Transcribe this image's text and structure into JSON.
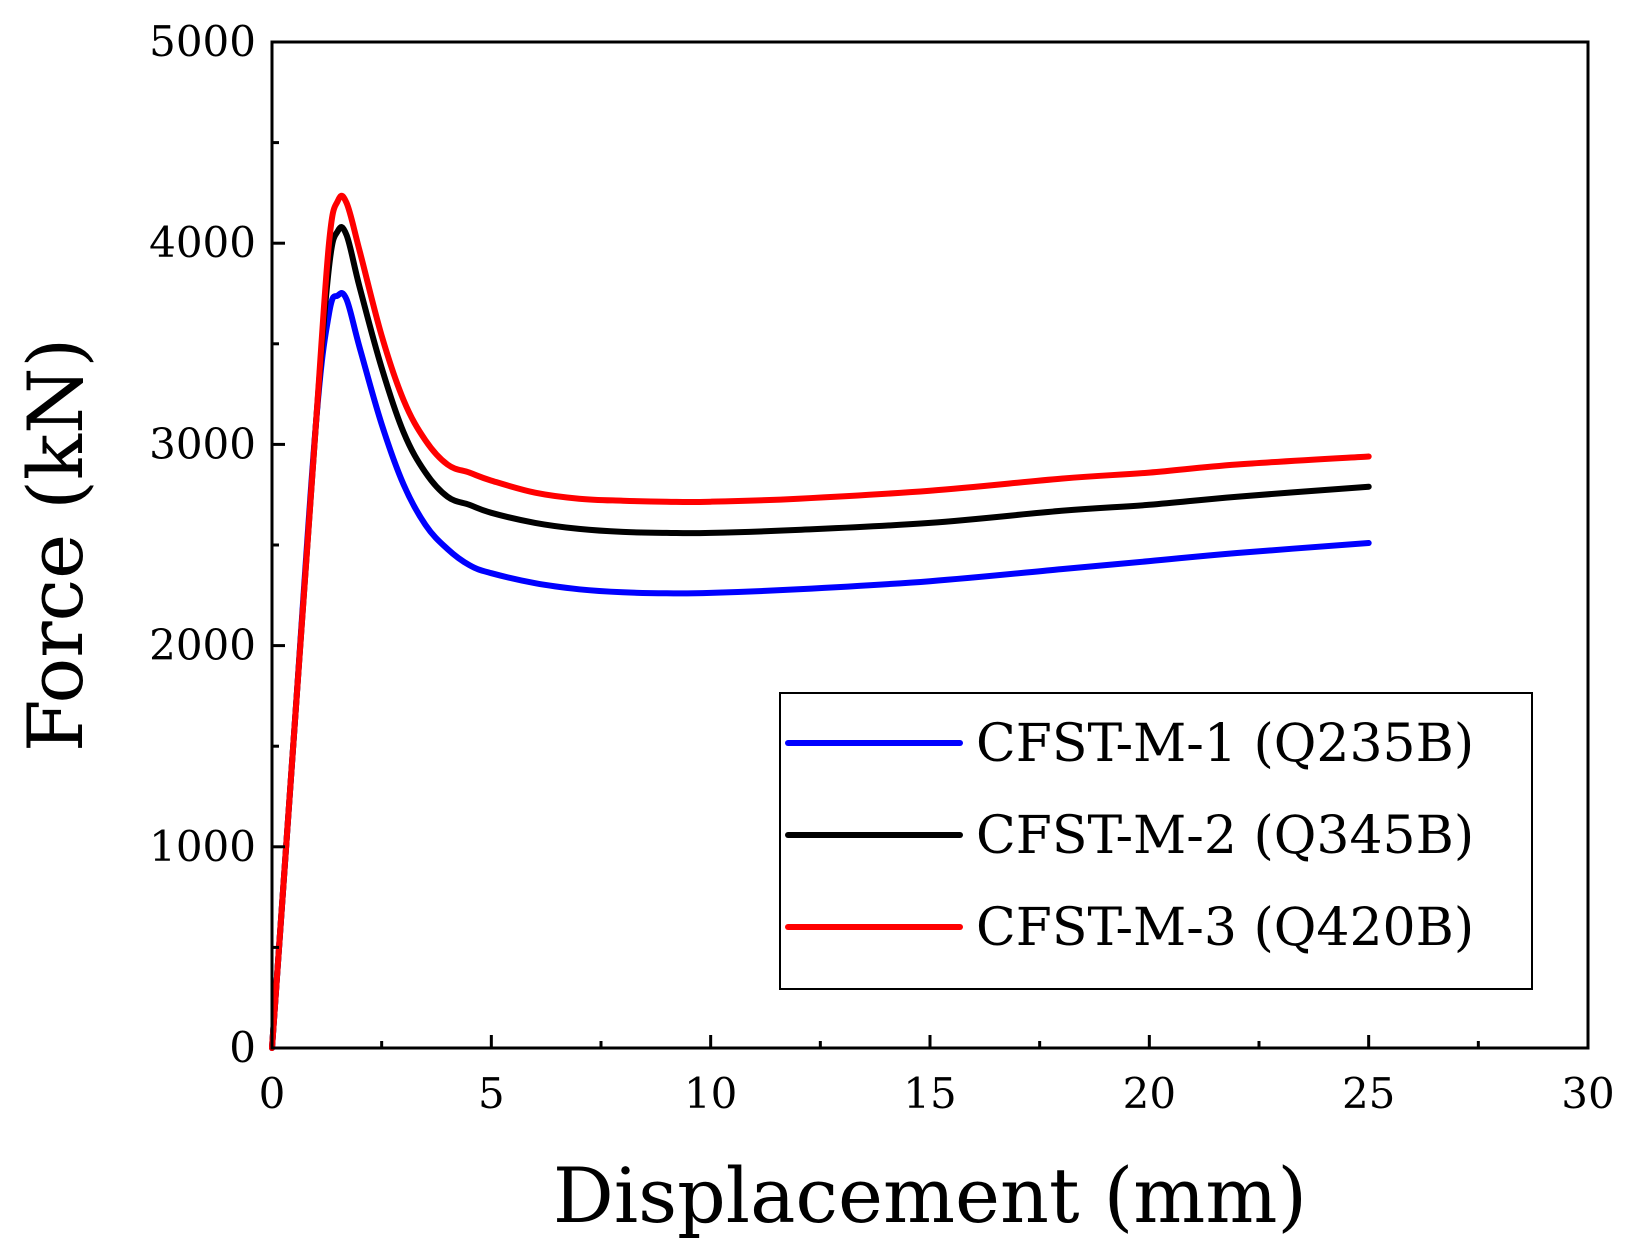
{
  "chart_data": {
    "type": "line",
    "title": "",
    "xlabel": "Displacement (mm)",
    "ylabel": "Force (kN)",
    "xlim": [
      0,
      30
    ],
    "ylim": [
      0,
      5000
    ],
    "xticks": [
      0,
      5,
      10,
      15,
      20,
      25,
      30
    ],
    "yticks": [
      0,
      1000,
      2000,
      3000,
      4000,
      5000
    ],
    "xtick_labels": [
      "0",
      "5",
      "10",
      "15",
      "20",
      "25",
      "30"
    ],
    "ytick_labels": [
      "0",
      "1000",
      "2000",
      "3000",
      "4000",
      "5000"
    ],
    "grid": false,
    "legend_position": "bottom-right",
    "series": [
      {
        "name": "CFST-M-1 (Q235B)",
        "color": "#0000ff",
        "x": [
          0,
          0.5,
          1.0,
          1.3,
          1.5,
          1.7,
          2.0,
          2.5,
          3.0,
          3.5,
          4.0,
          4.5,
          5.0,
          6.0,
          7.0,
          8.0,
          9.0,
          10.0,
          12.0,
          15.0,
          18.0,
          20.0,
          22.0,
          25.0
        ],
        "y": [
          0,
          1550,
          3100,
          3650,
          3740,
          3720,
          3480,
          3100,
          2800,
          2600,
          2480,
          2400,
          2360,
          2310,
          2280,
          2265,
          2260,
          2262,
          2280,
          2320,
          2380,
          2420,
          2460,
          2510
        ]
      },
      {
        "name": "CFST-M-2 (Q345B)",
        "color": "#000000",
        "x": [
          0,
          0.5,
          1.0,
          1.3,
          1.5,
          1.7,
          2.0,
          2.5,
          3.0,
          3.5,
          4.0,
          4.5,
          5.0,
          6.0,
          7.0,
          8.0,
          9.0,
          10.0,
          12.0,
          15.0,
          18.0,
          20.0,
          22.0,
          25.0
        ],
        "y": [
          0,
          1550,
          3100,
          3880,
          4060,
          4040,
          3780,
          3380,
          3060,
          2860,
          2740,
          2700,
          2660,
          2610,
          2580,
          2565,
          2560,
          2560,
          2575,
          2610,
          2670,
          2700,
          2740,
          2790
        ]
      },
      {
        "name": "CFST-M-3 (Q420B)",
        "color": "#ff0000",
        "x": [
          0,
          0.5,
          1.0,
          1.3,
          1.5,
          1.7,
          2.0,
          2.5,
          3.0,
          3.5,
          4.0,
          4.5,
          5.0,
          6.0,
          7.0,
          8.0,
          9.0,
          10.0,
          12.0,
          15.0,
          18.0,
          20.0,
          22.0,
          25.0
        ],
        "y": [
          0,
          1550,
          3100,
          4000,
          4210,
          4200,
          3960,
          3540,
          3220,
          3020,
          2900,
          2860,
          2820,
          2760,
          2730,
          2720,
          2715,
          2715,
          2730,
          2770,
          2830,
          2860,
          2900,
          2940
        ]
      }
    ]
  }
}
